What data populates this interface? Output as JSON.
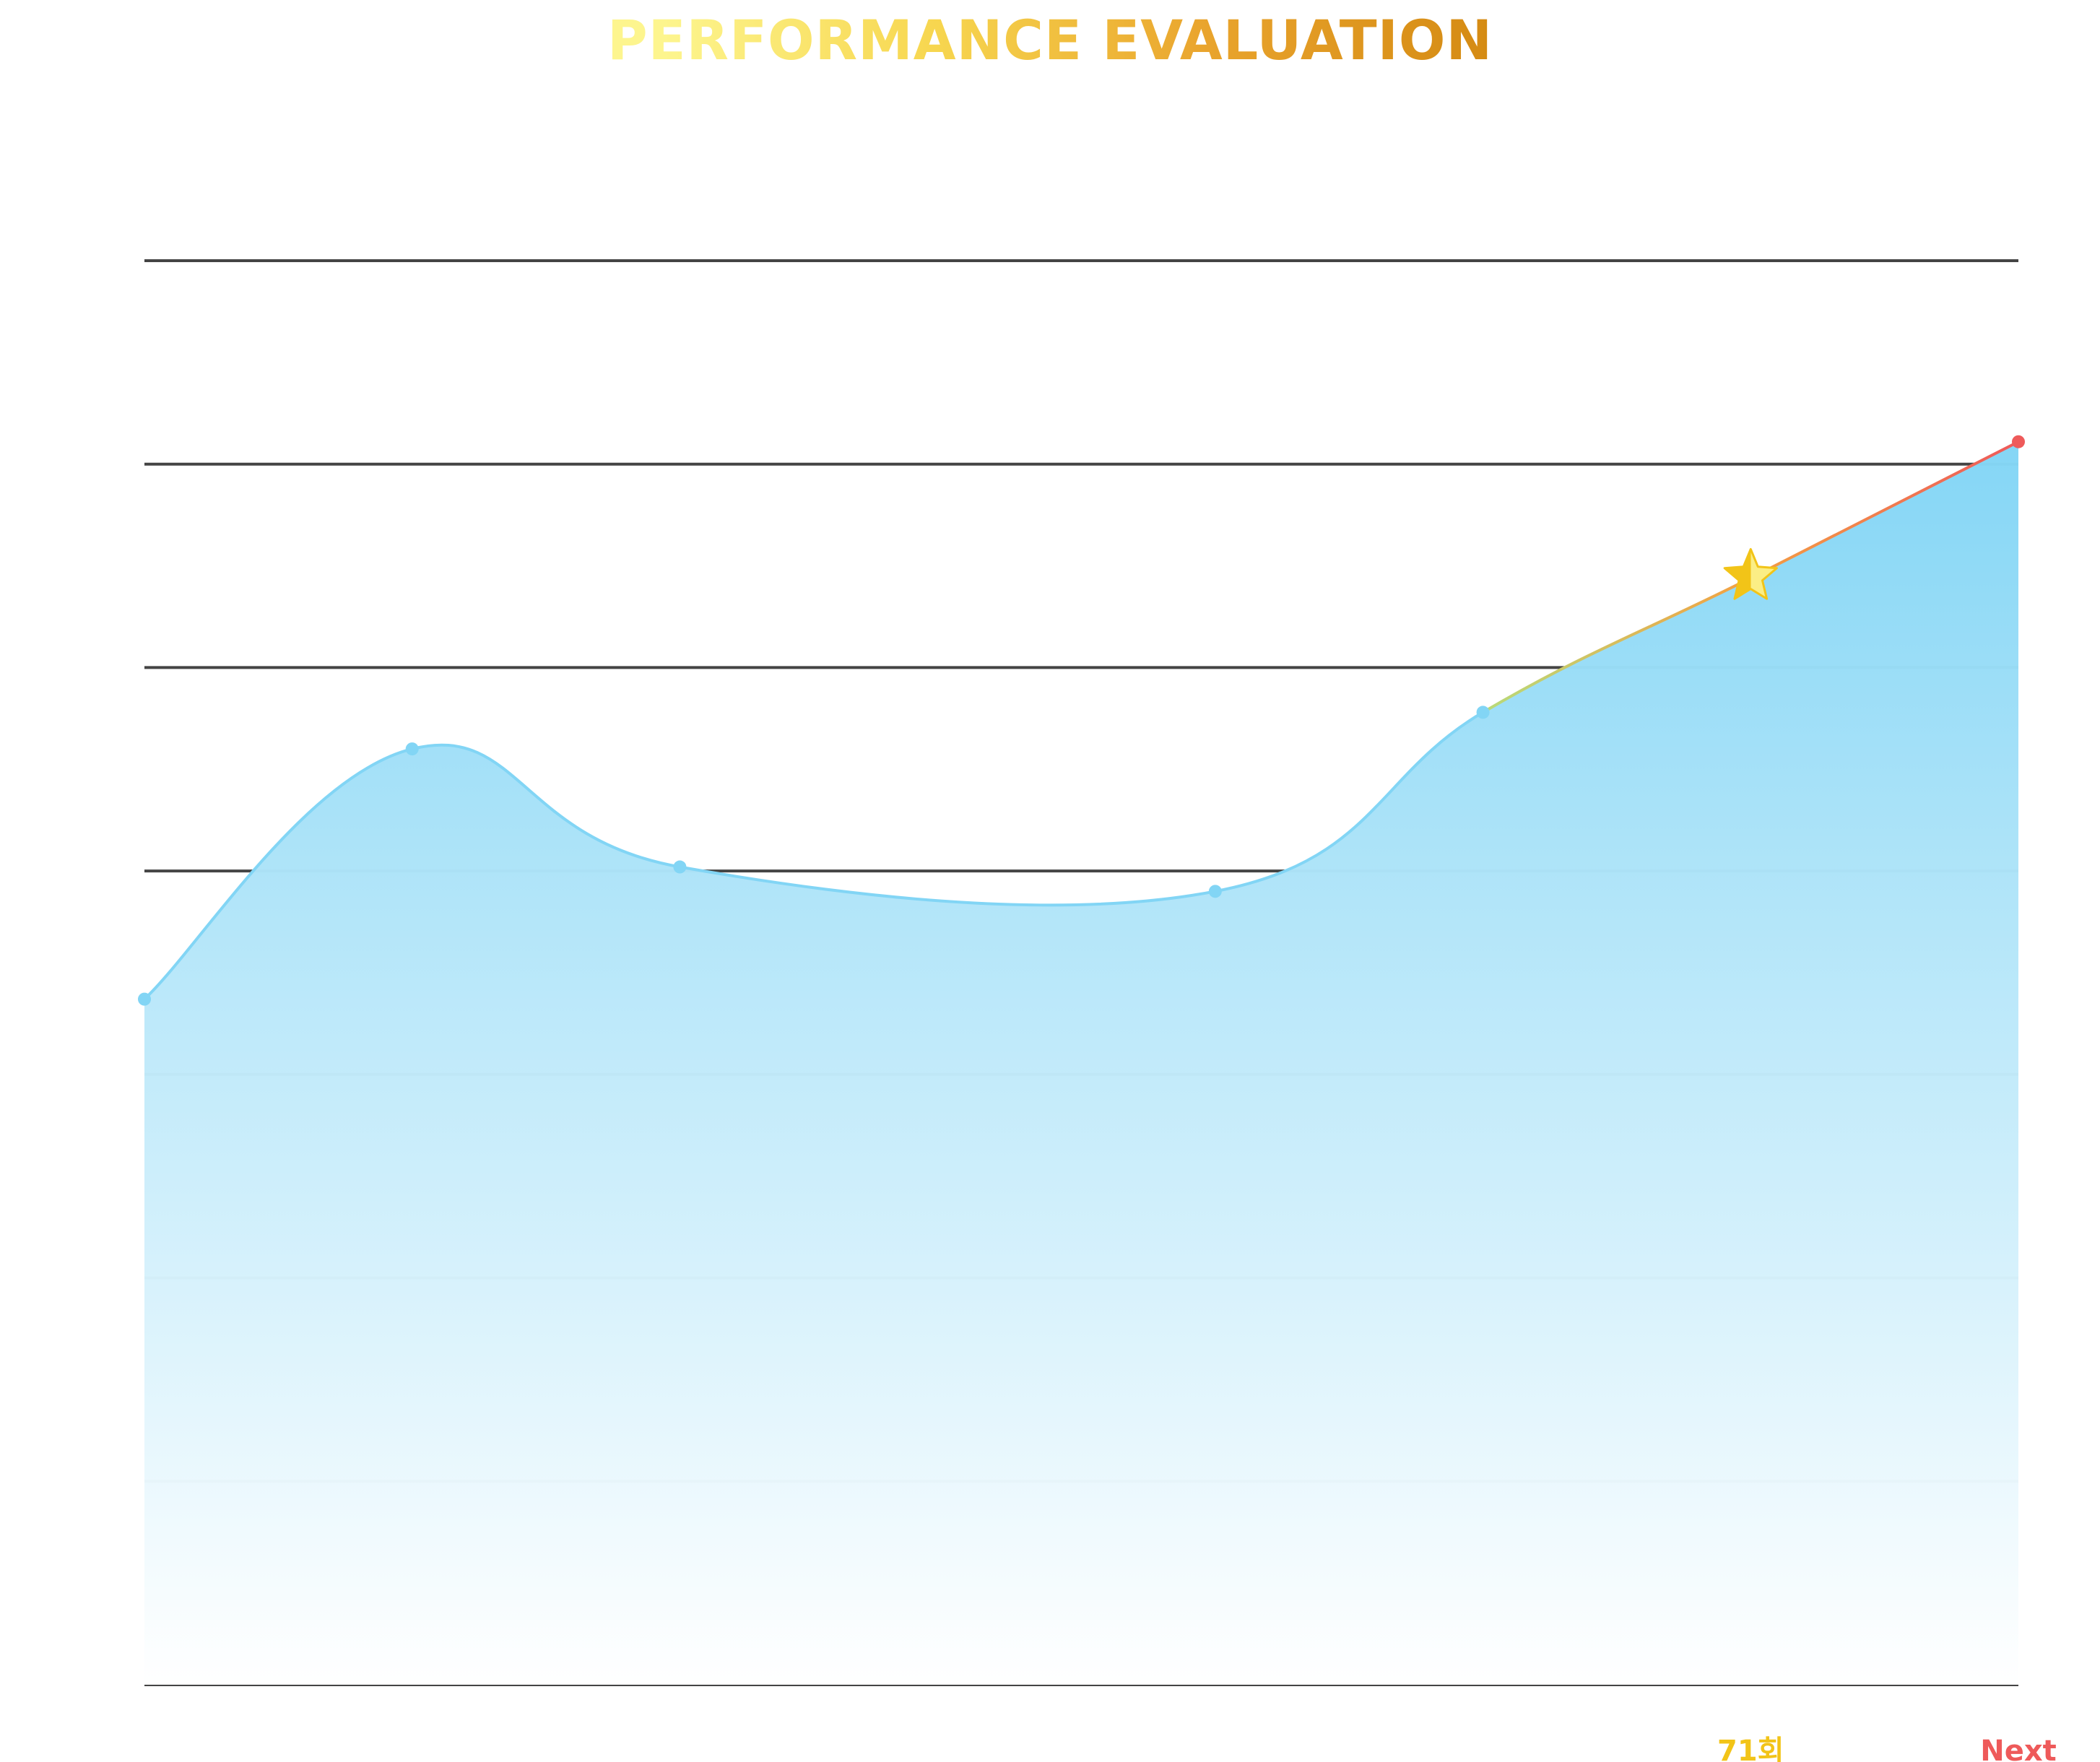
{
  "chart_data": {
    "type": "area",
    "title": "PERFORMANCE EVALUATION",
    "xlabel": "",
    "ylabel": "",
    "x_positions": [
      0,
      1,
      2,
      3,
      4,
      5,
      6,
      7
    ],
    "values": [
      3.37,
      4.6,
      4.02,
      null,
      3.9,
      4.78,
      5.44,
      6.11
    ],
    "x_tick_labels": [
      {
        "x": 6,
        "label": "71회",
        "color": "#f2c418"
      },
      {
        "x": 7,
        "label": "Next",
        "color": "#ee5a5a"
      }
    ],
    "highlight": {
      "x": 6,
      "marker": "star-icon",
      "colors": [
        "#f2c418",
        "#fbee85"
      ]
    },
    "ylim": [
      0,
      7
    ],
    "y_gridlines": [
      0,
      1,
      2,
      3,
      4,
      5,
      6,
      7
    ],
    "y_tick_labels_shown": false,
    "grid": true,
    "legend": "none",
    "colors": {
      "series": "#82d5f5",
      "area_top": "#82d5f5",
      "area_bottom": "#ffffff",
      "grid": "#444444",
      "projection_start": "#b5dd7c",
      "projection_mid": "#f3a142",
      "projection_end": "#ee5a5a",
      "title_gradient": [
        "#fdf58e",
        "#f7d64f",
        "#e9a42d",
        "#d58b13"
      ]
    }
  }
}
